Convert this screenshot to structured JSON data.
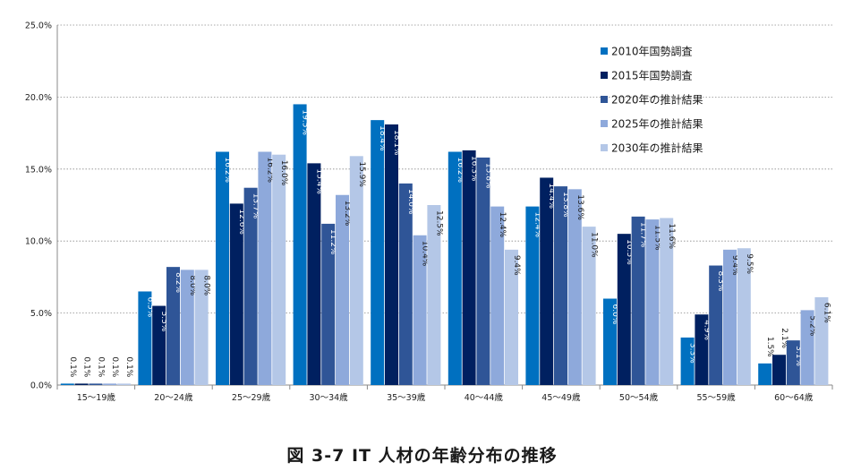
{
  "caption": "図 3-7 IT 人材の年齢分布の推移",
  "chart_data": {
    "type": "bar",
    "title": "",
    "xlabel": "",
    "ylabel": "",
    "ylim": [
      0,
      25
    ],
    "yticks": [
      "0.0%",
      "5.0%",
      "10.0%",
      "15.0%",
      "20.0%",
      "25.0%"
    ],
    "grid": "horizontal-dotted",
    "legend_position": "top-right",
    "categories": [
      "15～19歳",
      "20～24歳",
      "25～29歳",
      "30～34歳",
      "35～39歳",
      "40～44歳",
      "45～49歳",
      "50～54歳",
      "55～59歳",
      "60～64歳"
    ],
    "series": [
      {
        "name": "2010年国勢調査",
        "color": "#0070C0",
        "values": [
          0.1,
          6.5,
          16.2,
          19.5,
          18.4,
          16.2,
          12.4,
          6.0,
          3.3,
          1.5
        ]
      },
      {
        "name": "2015年国勢調査",
        "color": "#002060",
        "values": [
          0.1,
          5.5,
          12.6,
          15.4,
          18.1,
          16.3,
          14.4,
          10.5,
          4.9,
          2.1
        ]
      },
      {
        "name": "2020年の推計結果",
        "color": "#2F5597",
        "values": [
          0.1,
          8.2,
          13.7,
          11.2,
          14.0,
          15.8,
          13.8,
          11.7,
          8.3,
          3.1
        ]
      },
      {
        "name": "2025年の推計結果",
        "color": "#8EA9DB",
        "values": [
          0.1,
          8.0,
          16.2,
          13.2,
          10.4,
          12.4,
          13.6,
          11.5,
          9.4,
          5.2
        ]
      },
      {
        "name": "2030年の推計結果",
        "color": "#B4C7E7",
        "values": [
          0.1,
          8.0,
          16.0,
          15.9,
          12.5,
          9.4,
          11.0,
          11.6,
          9.5,
          6.1
        ]
      }
    ]
  }
}
